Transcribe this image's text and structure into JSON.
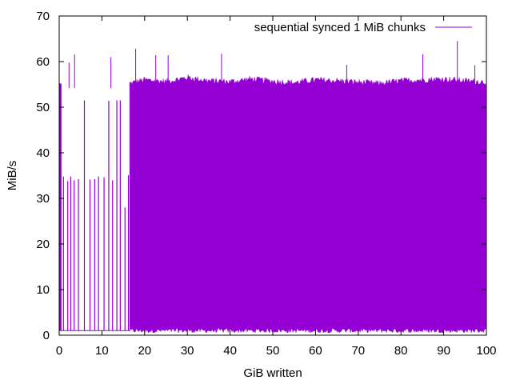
{
  "chart_data": {
    "type": "line",
    "title": "",
    "xlabel": "GiB written",
    "ylabel": "MiB/s",
    "xlim": [
      0,
      100
    ],
    "ylim": [
      0,
      70
    ],
    "xticks": [
      0,
      10,
      20,
      30,
      40,
      50,
      60,
      70,
      80,
      90,
      100
    ],
    "yticks": [
      0,
      10,
      20,
      30,
      40,
      50,
      60,
      70
    ],
    "grid": false,
    "legend_position": "top-right",
    "series": [
      {
        "name": "sequential synced 1 MiB chunks",
        "color": "#9400D3",
        "baseline_region": {
          "x": [
            0,
            16.5
          ],
          "low": 1.0,
          "typical_high": 34.8
        },
        "dense_region": {
          "x": [
            16.5,
            100
          ],
          "low_range": [
            0.5,
            1.5
          ],
          "envelope_high": [
            [
              16.5,
              55.2
            ],
            [
              20,
              56.0
            ],
            [
              25,
              55.6
            ],
            [
              30,
              56.5
            ],
            [
              35,
              55.8
            ],
            [
              40,
              55.6
            ],
            [
              45,
              56.2
            ],
            [
              50,
              55.7
            ],
            [
              55,
              55.4
            ],
            [
              60,
              56.0
            ],
            [
              65,
              55.8
            ],
            [
              70,
              55.5
            ],
            [
              75,
              55.2
            ],
            [
              80,
              55.8
            ],
            [
              85,
              56.0
            ],
            [
              90,
              56.2
            ],
            [
              95,
              55.8
            ],
            [
              100,
              55.5
            ]
          ]
        },
        "early_spikes": [
          [
            0.4,
            55.0
          ],
          [
            1.0,
            34.8
          ],
          [
            2.0,
            33.8
          ],
          [
            2.7,
            34.8
          ],
          [
            3.5,
            34.0
          ],
          [
            4.5,
            34.2
          ],
          [
            5.9,
            51.5
          ],
          [
            7.2,
            34.1
          ],
          [
            8.3,
            34.2
          ],
          [
            9.2,
            34.8
          ],
          [
            10.5,
            34.6
          ],
          [
            11.6,
            51.4
          ],
          [
            12.5,
            34.0
          ],
          [
            13.5,
            51.5
          ],
          [
            14.3,
            51.5
          ],
          [
            15.4,
            28.0
          ],
          [
            16.2,
            35.1
          ]
        ],
        "peaks": [
          [
            2.3,
            59.8
          ],
          [
            3.6,
            61.6
          ],
          [
            12.1,
            61.0
          ],
          [
            17.9,
            62.8
          ],
          [
            22.6,
            61.4
          ],
          [
            25.5,
            61.4
          ],
          [
            38.0,
            61.7
          ],
          [
            67.3,
            59.3
          ],
          [
            85.1,
            61.6
          ],
          [
            93.2,
            64.5
          ],
          [
            97.3,
            59.2
          ]
        ]
      }
    ]
  }
}
